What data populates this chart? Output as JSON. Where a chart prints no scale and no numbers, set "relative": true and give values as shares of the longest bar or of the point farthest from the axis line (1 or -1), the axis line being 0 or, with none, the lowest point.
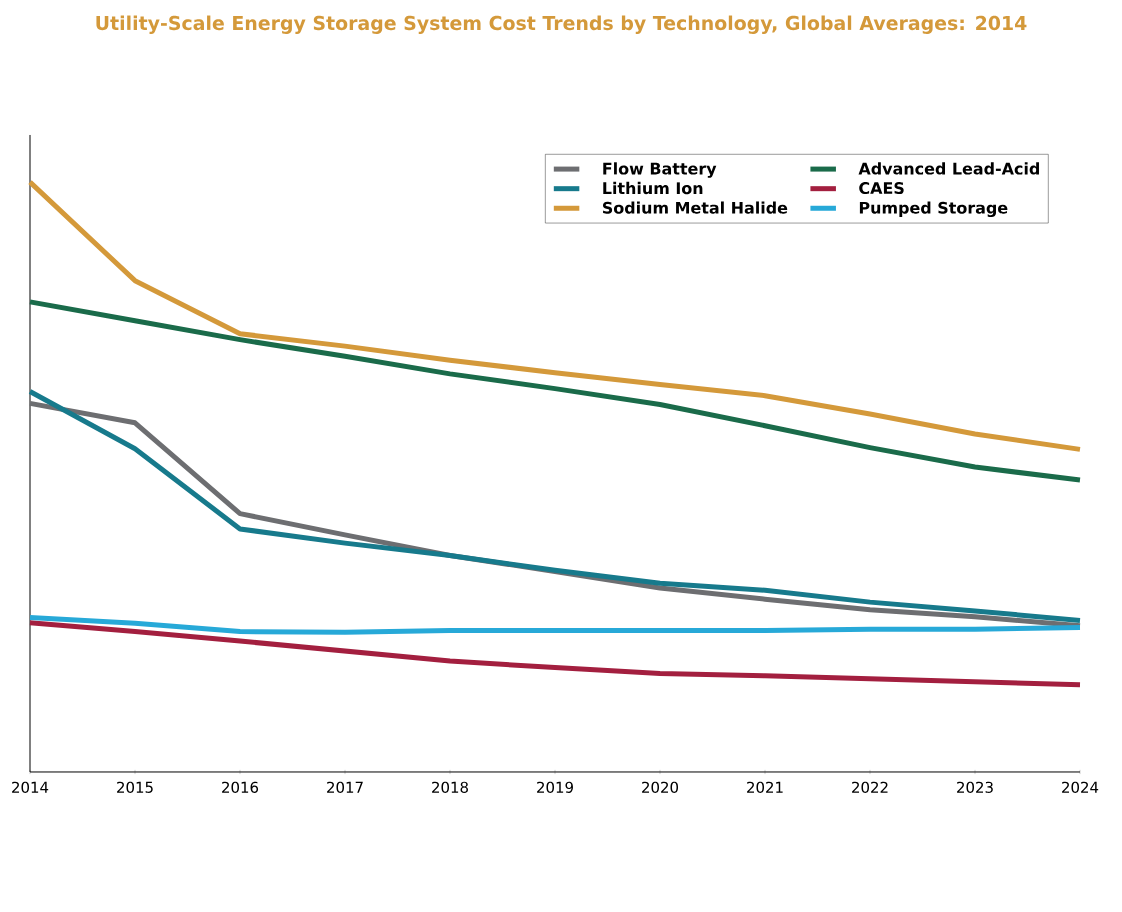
{
  "chart_data": {
    "type": "line",
    "title": "Utility-Scale Energy Storage System Cost Trends by Technology, Global Averages: 2014",
    "categories": [
      "2014",
      "2015",
      "2016",
      "2017",
      "2018",
      "2019",
      "2020",
      "2021",
      "2022",
      "2023",
      "2024"
    ],
    "relative": true,
    "legend": "top right",
    "line_style": "solid",
    "series": [
      {
        "name": "Flow Battery",
        "color": "#6d6e71",
        "values": [
          0.625,
          0.592,
          0.438,
          0.402,
          0.367,
          0.34,
          0.312,
          0.293,
          0.275,
          0.263,
          0.248
        ]
      },
      {
        "name": "Advanced Lead-Acid",
        "color": "#1a6b4a",
        "values": [
          0.797,
          0.765,
          0.733,
          0.705,
          0.675,
          0.65,
          0.623,
          0.587,
          0.55,
          0.517,
          0.495
        ]
      },
      {
        "name": "Lithium Ion",
        "color": "#177a8c",
        "values": [
          0.645,
          0.548,
          0.412,
          0.388,
          0.367,
          0.342,
          0.32,
          0.308,
          0.288,
          0.273,
          0.257
        ]
      },
      {
        "name": "CAES",
        "color": "#a31f3f",
        "values": [
          0.253,
          0.238,
          0.222,
          0.205,
          0.188,
          0.177,
          0.167,
          0.163,
          0.158,
          0.153,
          0.148
        ]
      },
      {
        "name": "Sodium Metal Halide",
        "color": "#d4993a",
        "values": [
          1.0,
          0.833,
          0.743,
          0.722,
          0.698,
          0.677,
          0.657,
          0.638,
          0.607,
          0.573,
          0.547
        ]
      },
      {
        "name": "Pumped Storage",
        "color": "#27a9d8",
        "values": [
          0.262,
          0.252,
          0.238,
          0.237,
          0.24,
          0.24,
          0.24,
          0.24,
          0.242,
          0.242,
          0.245
        ]
      }
    ]
  }
}
